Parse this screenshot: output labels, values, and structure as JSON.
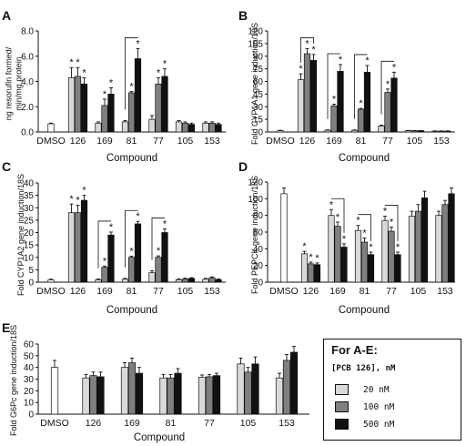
{
  "legend": {
    "title": "For A-E:",
    "subtitle": "[PCB 126], nM",
    "items": [
      {
        "label": "20 nM",
        "color": "#d9d9d9"
      },
      {
        "label": "100 nM",
        "color": "#7f7f7f"
      },
      {
        "label": "500 nM",
        "color": "#111111"
      }
    ]
  },
  "chart_data": [
    {
      "panel": "A",
      "type": "bar",
      "ylabel": "ng resorufin formed/\nmin/mg protein",
      "xlabel": "Compound",
      "ylim": [
        0,
        8
      ],
      "yticks": [
        0,
        2,
        4,
        6,
        8
      ],
      "ytick_labels": [
        "0.0",
        "2.0",
        "4.0",
        "6.0",
        "8.0"
      ],
      "categories": [
        "DMSO",
        "126",
        "169",
        "81",
        "77",
        "105",
        "153"
      ],
      "series": [
        {
          "label": "20 nM",
          "values": [
            null,
            4.3,
            0.7,
            0.8,
            1.0,
            0.8,
            0.7
          ],
          "errors": [
            null,
            0.8,
            0.1,
            0.1,
            0.3,
            0.1,
            0.1
          ]
        },
        {
          "label": "100 nM",
          "values": [
            null,
            4.4,
            2.1,
            3.1,
            3.8,
            0.7,
            0.7
          ],
          "errors": [
            null,
            0.7,
            0.5,
            0.1,
            0.5,
            0.1,
            0.1
          ]
        },
        {
          "label": "500 nM",
          "values": [
            null,
            3.8,
            3.0,
            5.8,
            4.4,
            0.6,
            0.6
          ],
          "errors": [
            null,
            0.5,
            0.5,
            0.8,
            0.6,
            0.1,
            0.1
          ]
        }
      ],
      "control": {
        "value": 0.65,
        "error": 0.05
      },
      "stars": [
        [
          1,
          0
        ],
        [
          1,
          1
        ],
        [
          1,
          2
        ],
        [
          2,
          1
        ],
        [
          2,
          2
        ],
        [
          3,
          1
        ],
        [
          3,
          2
        ],
        [
          4,
          1
        ],
        [
          4,
          2
        ]
      ],
      "brackets": [
        [
          3,
          0,
          2
        ]
      ]
    },
    {
      "panel": "B",
      "type": "bar",
      "ylabel": "Fold CYP1A1 gene induction/18S",
      "xlabel": "Compound",
      "ylim": [
        0,
        120
      ],
      "yticks": [
        0,
        15,
        30,
        45,
        60,
        75,
        90,
        105,
        120
      ],
      "ytick_labels": [
        "0",
        "15",
        "30",
        "45",
        "60",
        "75",
        "90",
        "105",
        "120"
      ],
      "categories": [
        "DMSO",
        "126",
        "169",
        "81",
        "77",
        "105",
        "153"
      ],
      "series": [
        {
          "label": "20 nM",
          "values": [
            null,
            62,
            2,
            2,
            7,
            1.5,
            1
          ],
          "errors": [
            null,
            7,
            0.5,
            0.5,
            1,
            0.3,
            0.3
          ]
        },
        {
          "label": "100 nM",
          "values": [
            null,
            93,
            31,
            27,
            47,
            1.5,
            1
          ],
          "errors": [
            null,
            6,
            2,
            1,
            4,
            0.3,
            0.3
          ]
        },
        {
          "label": "500 nM",
          "values": [
            null,
            85,
            72,
            71,
            64,
            1.5,
            1
          ],
          "errors": [
            null,
            7,
            8,
            8,
            7,
            0.3,
            0.3
          ]
        }
      ],
      "control": {
        "value": 1.5,
        "error": 0.5
      },
      "stars": [
        [
          1,
          0
        ],
        [
          1,
          1
        ],
        [
          1,
          2
        ],
        [
          2,
          1
        ],
        [
          2,
          2
        ],
        [
          3,
          1
        ],
        [
          3,
          2
        ],
        [
          4,
          1
        ],
        [
          4,
          2
        ]
      ],
      "brackets": [
        [
          1,
          0,
          2
        ],
        [
          2,
          0,
          2
        ],
        [
          3,
          0,
          2
        ],
        [
          4,
          0,
          2
        ]
      ]
    },
    {
      "panel": "C",
      "type": "bar",
      "ylabel": "Fold CYP1A2 gene induction/18S",
      "xlabel": "Compound",
      "ylim": [
        0,
        40
      ],
      "yticks": [
        0,
        5,
        10,
        15,
        20,
        25,
        30,
        35,
        40
      ],
      "ytick_labels": [
        "0",
        "5",
        "10",
        "15",
        "20",
        "25",
        "30",
        "35",
        "40"
      ],
      "categories": [
        "DMSO",
        "126",
        "169",
        "81",
        "77",
        "105",
        "153"
      ],
      "series": [
        {
          "label": "20 nM",
          "values": [
            null,
            28,
            1,
            1.2,
            3.8,
            1,
            1.2
          ],
          "errors": [
            null,
            3.5,
            0.3,
            0.3,
            0.8,
            0.3,
            0.3
          ]
        },
        {
          "label": "100 nM",
          "values": [
            null,
            28,
            6,
            10,
            10,
            1.3,
            1.8
          ],
          "errors": [
            null,
            3,
            0.5,
            0.5,
            0.6,
            0.3,
            0.3
          ]
        },
        {
          "label": "500 nM",
          "values": [
            null,
            33,
            19,
            23.5,
            20,
            1.5,
            1
          ],
          "errors": [
            null,
            2,
            1.2,
            1,
            1.5,
            0.3,
            0.3
          ]
        }
      ],
      "control": {
        "value": 0.9,
        "error": 0.3
      },
      "stars": [
        [
          1,
          0
        ],
        [
          1,
          1
        ],
        [
          1,
          2
        ],
        [
          2,
          1
        ],
        [
          2,
          2
        ],
        [
          3,
          1
        ],
        [
          3,
          2
        ],
        [
          4,
          1
        ],
        [
          4,
          2
        ]
      ],
      "brackets": [
        [
          2,
          0,
          2
        ],
        [
          3,
          0,
          2
        ],
        [
          4,
          0,
          2
        ]
      ]
    },
    {
      "panel": "D",
      "type": "bar",
      "ylabel": "Fold PEPCK gene induction/18S",
      "xlabel": "Compound",
      "ylim": [
        0,
        120
      ],
      "yticks": [
        0,
        20,
        40,
        60,
        80,
        100,
        120
      ],
      "ytick_labels": [
        "0",
        "20",
        "40",
        "60",
        "80",
        "100",
        "120"
      ],
      "categories": [
        "DMSO",
        "126",
        "169",
        "81",
        "77",
        "105",
        "153"
      ],
      "series": [
        {
          "label": "20 nM",
          "values": [
            null,
            34,
            80,
            62,
            74,
            79,
            80
          ],
          "errors": [
            null,
            3,
            7,
            6,
            5,
            6,
            5
          ]
        },
        {
          "label": "100 nM",
          "values": [
            null,
            22,
            67,
            48,
            61,
            85,
            93
          ],
          "errors": [
            null,
            2,
            5,
            5,
            5,
            8,
            5
          ]
        },
        {
          "label": "500 nM",
          "values": [
            null,
            21,
            42,
            33,
            33,
            101,
            106
          ],
          "errors": [
            null,
            2,
            4,
            3,
            3,
            8,
            7
          ]
        }
      ],
      "control": {
        "value": 106,
        "error": 7
      },
      "stars": [
        [
          1,
          0
        ],
        [
          1,
          1
        ],
        [
          1,
          2
        ],
        [
          2,
          0
        ],
        [
          2,
          1
        ],
        [
          2,
          2
        ],
        [
          3,
          0
        ],
        [
          3,
          1
        ],
        [
          3,
          2
        ],
        [
          4,
          0
        ],
        [
          4,
          1
        ],
        [
          4,
          2
        ]
      ],
      "brackets": [
        [
          2,
          0,
          2
        ],
        [
          3,
          0,
          2
        ],
        [
          4,
          0,
          2
        ]
      ]
    },
    {
      "panel": "E",
      "type": "bar",
      "ylabel": "Fold G6Pc gene induction/18S",
      "xlabel": "Compound",
      "ylim": [
        0,
        60
      ],
      "yticks": [
        0,
        10,
        20,
        30,
        40,
        50,
        60
      ],
      "ytick_labels": [
        "0",
        "10",
        "20",
        "30",
        "40",
        "50",
        "60"
      ],
      "categories": [
        "DMSO",
        "126",
        "169",
        "81",
        "77",
        "105",
        "153"
      ],
      "series": [
        {
          "label": "20 nM",
          "values": [
            null,
            31,
            40,
            31,
            31.5,
            43,
            31
          ],
          "errors": [
            null,
            3,
            4,
            3,
            2,
            5,
            4
          ]
        },
        {
          "label": "100 nM",
          "values": [
            null,
            33,
            44,
            31,
            32,
            36,
            46
          ],
          "errors": [
            null,
            3,
            4,
            3,
            2,
            4,
            5
          ]
        },
        {
          "label": "500 nM",
          "values": [
            null,
            32,
            35,
            35,
            33,
            43,
            53
          ],
          "errors": [
            null,
            4,
            5,
            4,
            2,
            6,
            5
          ]
        }
      ],
      "control": {
        "value": 40,
        "error": 6
      },
      "stars": [],
      "brackets": []
    }
  ]
}
